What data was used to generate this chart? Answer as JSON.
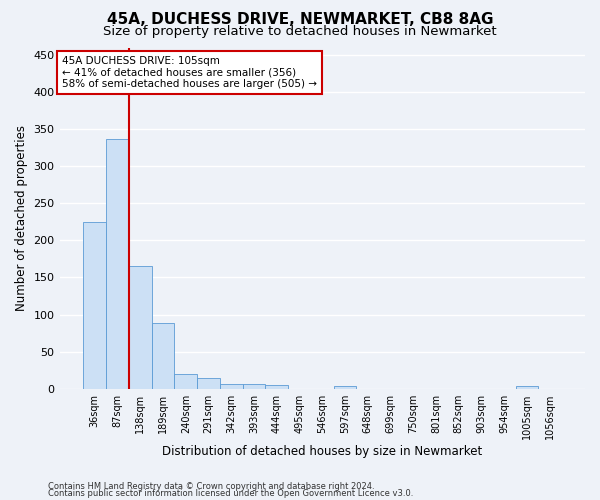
{
  "title1": "45A, DUCHESS DRIVE, NEWMARKET, CB8 8AG",
  "title2": "Size of property relative to detached houses in Newmarket",
  "xlabel": "Distribution of detached houses by size in Newmarket",
  "ylabel": "Number of detached properties",
  "bins": [
    "36sqm",
    "87sqm",
    "138sqm",
    "189sqm",
    "240sqm",
    "291sqm",
    "342sqm",
    "393sqm",
    "444sqm",
    "495sqm",
    "546sqm",
    "597sqm",
    "648sqm",
    "699sqm",
    "750sqm",
    "801sqm",
    "852sqm",
    "903sqm",
    "954sqm",
    "1005sqm",
    "1056sqm"
  ],
  "values": [
    225,
    336,
    165,
    88,
    20,
    14,
    6,
    6,
    5,
    0,
    0,
    4,
    0,
    0,
    0,
    0,
    0,
    0,
    0,
    4,
    0
  ],
  "bar_color": "#cce0f5",
  "bar_edge_color": "#5b9bd5",
  "vline_color": "#cc0000",
  "vline_x": 1.5,
  "annotation_line1": "45A DUCHESS DRIVE: 105sqm",
  "annotation_line2": "← 41% of detached houses are smaller (356)",
  "annotation_line3": "58% of semi-detached houses are larger (505) →",
  "annotation_box_color": "#ffffff",
  "annotation_box_edge": "#cc0000",
  "footer1": "Contains HM Land Registry data © Crown copyright and database right 2024.",
  "footer2": "Contains public sector information licensed under the Open Government Licence v3.0.",
  "ylim": [
    0,
    460
  ],
  "yticks": [
    0,
    50,
    100,
    150,
    200,
    250,
    300,
    350,
    400,
    450
  ],
  "bg_color": "#eef2f8",
  "grid_color": "#ffffff",
  "title1_fontsize": 11,
  "title2_fontsize": 9.5,
  "xlabel_fontsize": 8.5,
  "ylabel_fontsize": 8.5,
  "tick_fontsize": 8,
  "xtick_fontsize": 7
}
